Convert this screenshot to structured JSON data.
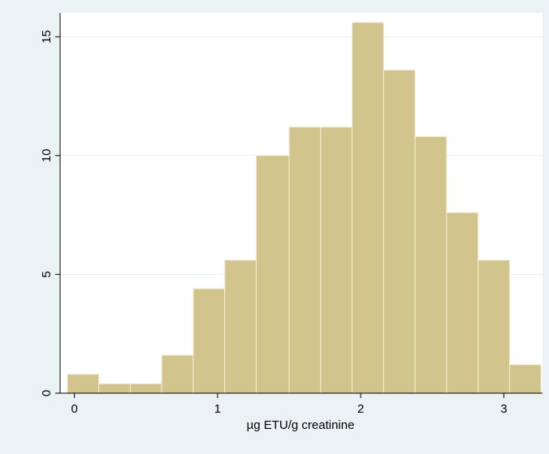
{
  "chart_data": {
    "type": "bar",
    "subtype": "histogram",
    "xlabel": "µg ETU/g creatinine",
    "ylabel": "",
    "xlim": [
      -0.1,
      3.27
    ],
    "ylim": [
      0,
      16.0
    ],
    "x_ticks": [
      0,
      1,
      2,
      3
    ],
    "y_ticks": [
      0,
      5,
      10,
      15
    ],
    "grid": true,
    "legend": "none",
    "bins": [
      {
        "start": -0.05,
        "end": 0.17,
        "value": 0.8
      },
      {
        "start": 0.17,
        "end": 0.39,
        "value": 0.4
      },
      {
        "start": 0.39,
        "end": 0.61,
        "value": 0.4
      },
      {
        "start": 0.61,
        "end": 0.83,
        "value": 1.6
      },
      {
        "start": 0.83,
        "end": 1.05,
        "value": 4.4
      },
      {
        "start": 1.05,
        "end": 1.27,
        "value": 5.6
      },
      {
        "start": 1.27,
        "end": 1.5,
        "value": 10.0
      },
      {
        "start": 1.5,
        "end": 1.72,
        "value": 11.2
      },
      {
        "start": 1.72,
        "end": 1.94,
        "value": 11.2
      },
      {
        "start": 1.94,
        "end": 2.16,
        "value": 15.6
      },
      {
        "start": 2.16,
        "end": 2.38,
        "value": 13.6
      },
      {
        "start": 2.38,
        "end": 2.6,
        "value": 10.8
      },
      {
        "start": 2.6,
        "end": 2.82,
        "value": 7.6
      },
      {
        "start": 2.82,
        "end": 3.04,
        "value": 5.6
      },
      {
        "start": 3.04,
        "end": 3.26,
        "value": 1.2
      }
    ],
    "colors": {
      "bar_fill": "#d2c48d",
      "bar_stroke": "#f4eedb",
      "plot_background": "#ffffff",
      "outer_background": "#eaf2f3",
      "grid": "#e6eff1"
    }
  }
}
